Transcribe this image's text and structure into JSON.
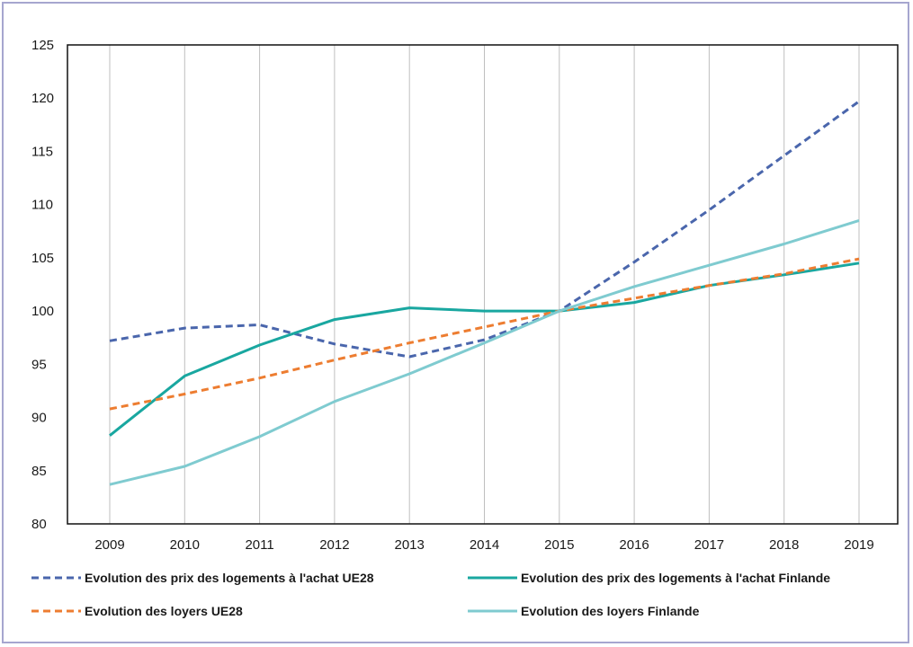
{
  "chart_data": {
    "type": "line",
    "title": "",
    "xlabel": "",
    "ylabel": "",
    "categories": [
      "2009",
      "2010",
      "2011",
      "2012",
      "2013",
      "2014",
      "2015",
      "2016",
      "2017",
      "2018",
      "2019"
    ],
    "ylim": [
      80,
      125
    ],
    "yticks": [
      80,
      85,
      90,
      95,
      100,
      105,
      110,
      115,
      120,
      125
    ],
    "grid": "vertical",
    "legend_position": "bottom",
    "series": [
      {
        "name": "Evolution des prix des logements à l'achat UE28",
        "color": "#4a66ac",
        "dash": "dashed",
        "values": [
          97.2,
          98.4,
          98.7,
          96.9,
          95.7,
          97.3,
          100.0,
          104.6,
          109.5,
          114.6,
          119.7
        ]
      },
      {
        "name": "Evolution des prix des logements à l'achat Finlande",
        "color": "#19a7a0",
        "dash": "solid",
        "values": [
          88.3,
          93.9,
          96.8,
          99.2,
          100.3,
          100.0,
          100.0,
          100.8,
          102.4,
          103.4,
          104.5
        ]
      },
      {
        "name": "Evolution des loyers UE28",
        "color": "#ed7d31",
        "dash": "dashed",
        "values": [
          90.8,
          92.2,
          93.7,
          95.4,
          97.0,
          98.5,
          100.0,
          101.2,
          102.4,
          103.5,
          104.9
        ]
      },
      {
        "name": "Evolution des loyers Finlande",
        "color": "#7fcbd0",
        "dash": "solid",
        "values": [
          83.7,
          85.4,
          88.2,
          91.5,
          94.1,
          97.0,
          100.0,
          102.3,
          104.3,
          106.3,
          108.5
        ]
      }
    ]
  }
}
